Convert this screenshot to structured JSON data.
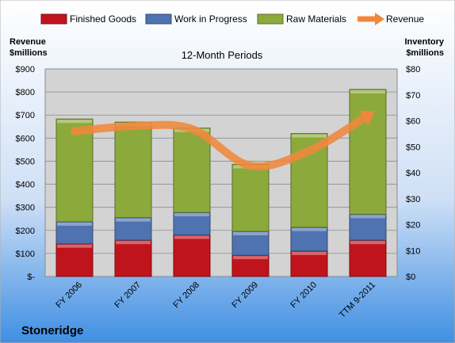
{
  "chart_data": {
    "type": "bar",
    "subtitle": "12-Month Periods",
    "company": "Stoneridge",
    "categories": [
      "FY 2006",
      "FY 2007",
      "FY 2008",
      "FY 2009",
      "FY 2010",
      "TTM 9-2011"
    ],
    "stacked": true,
    "series": [
      {
        "name": "Finished Goods",
        "color": "#c0141c",
        "values": [
          12.6,
          14.0,
          16.0,
          8.2,
          9.8,
          14.0
        ]
      },
      {
        "name": "Work in Progress",
        "color": "#4f72b0",
        "values": [
          8.5,
          8.7,
          8.7,
          9.2,
          9.2,
          10.0
        ]
      },
      {
        "name": "Raw Materials",
        "color": "#8caa3c",
        "values": [
          39.6,
          36.8,
          32.5,
          25.8,
          36.1,
          48.1
        ]
      }
    ],
    "line_series": {
      "name": "Revenue",
      "color": "#f0873c",
      "values": [
        630,
        652,
        640,
        480,
        545,
        698
      ]
    },
    "left_axis": {
      "label_line1": "Revenue",
      "label_line2": "$millions",
      "min": 0,
      "max": 900,
      "step": 100,
      "tick_labels": [
        "$-",
        "$100",
        "$200",
        "$300",
        "$400",
        "$500",
        "$600",
        "$700",
        "$800",
        "$900"
      ]
    },
    "right_axis": {
      "label_line1": "Inventory",
      "label_line2": "$millions",
      "min": 0,
      "max": 80,
      "step": 10,
      "tick_labels": [
        "$0",
        "$10",
        "$20",
        "$30",
        "$40",
        "$50",
        "$60",
        "$70",
        "$80"
      ]
    },
    "legend_position": "top",
    "grid": true
  }
}
